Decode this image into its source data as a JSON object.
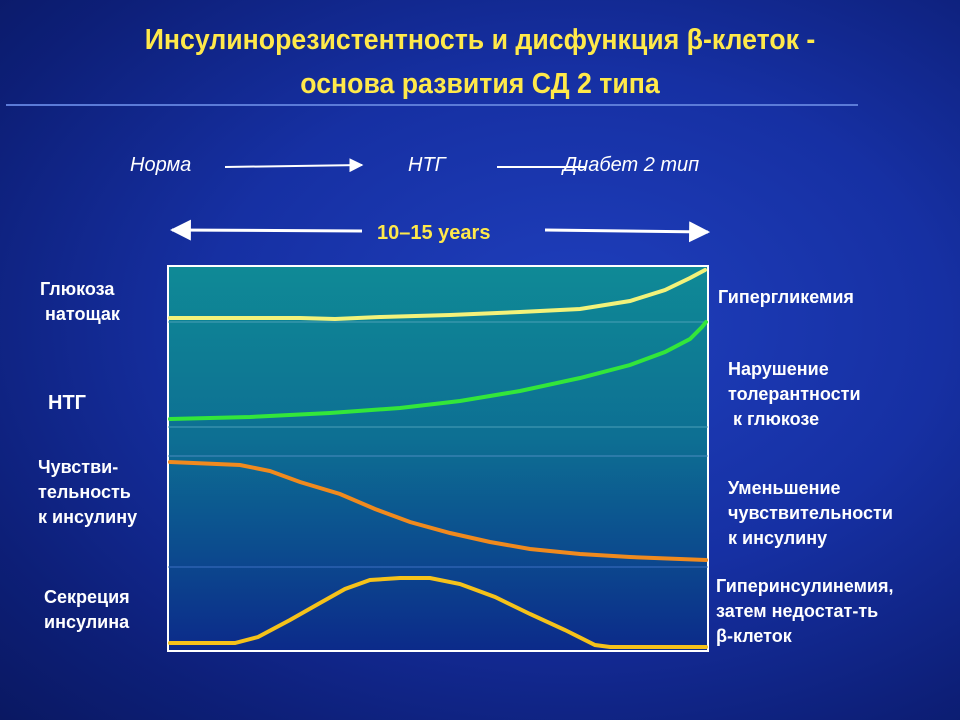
{
  "title": {
    "line1": "Инсулинорезистентность и дисфункция β-клеток -",
    "line2": "основа развития СД 2 типа"
  },
  "stages": {
    "norm": "Норма",
    "ntg": "НТГ",
    "diabetes": "Диабет 2 тип"
  },
  "timespan": "10–15 years",
  "left_labels": {
    "glucose": [
      "Глюкоза",
      " натощак"
    ],
    "ntg": [
      "НТГ"
    ],
    "sensitivity": [
      "Чувстви-",
      "тельность",
      "к инсулину"
    ],
    "secretion": [
      "Секреция",
      "инсулина"
    ]
  },
  "right_labels": {
    "hyperglycemia": [
      "Гипергликемия"
    ],
    "tolerance": [
      "Нарушение",
      "толерантности",
      " к глюкозе"
    ],
    "sensitivity_decrease": [
      "Уменьшение",
      "чувствительности",
      "к инсулину"
    ],
    "hyperinsulinemia": [
      "Гиперинсулинемия,",
      "затем недостат-ть",
      "β-клеток"
    ]
  },
  "colors": {
    "background": "#1630a3",
    "title": "#ffe94a",
    "panel_top": "#0f8a96",
    "panel_bottom": "#0c2a8a",
    "glucose_curve": "#f2f27a",
    "ntg_curve": "#33e63a",
    "sensitivity_curve": "#f08a1e",
    "secretion_curve": "#f5c21a"
  },
  "chart_data": {
    "type": "line",
    "series": [
      {
        "values": [
          0.1,
          0.1,
          0.1,
          0.11,
          0.13,
          0.18,
          0.3,
          0.55,
          1.0
        ]
      },
      {
        "values": [
          0.05,
          0.07,
          0.12,
          0.2,
          0.32,
          0.46,
          0.62,
          0.8,
          1.0
        ]
      },
      {
        "values": [
          1.0,
          0.96,
          0.8,
          0.58,
          0.38,
          0.22,
          0.1,
          0.04,
          0.0
        ]
      },
      {
        "values": [
          0.0,
          0.02,
          0.4,
          0.95,
          1.0,
          0.7,
          0.2,
          0.0,
          0.0
        ]
      }
    ]
  }
}
